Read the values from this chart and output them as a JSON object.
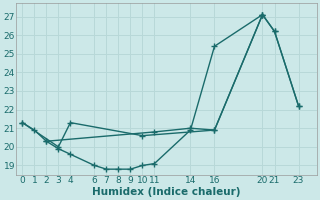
{
  "xlabel": "Humidex (Indice chaleur)",
  "bg_color": "#cce8e8",
  "line_color": "#1a6b6b",
  "line1": {
    "x": [
      0,
      1,
      2,
      3,
      4,
      6,
      7,
      8,
      9,
      10,
      11,
      14,
      16,
      20,
      21,
      23
    ],
    "y": [
      21.3,
      20.9,
      20.3,
      19.9,
      19.6,
      19.0,
      18.8,
      18.8,
      18.8,
      19.0,
      19.1,
      20.9,
      25.4,
      27.1,
      26.2,
      22.2
    ]
  },
  "line2": {
    "x": [
      0,
      3,
      4,
      10,
      16,
      20
    ],
    "y": [
      21.3,
      20.0,
      21.3,
      20.6,
      20.9,
      27.1
    ]
  },
  "line3": {
    "x": [
      2,
      11,
      14,
      16,
      20,
      21,
      23
    ],
    "y": [
      20.3,
      20.8,
      21.0,
      20.9,
      27.1,
      26.2,
      22.2
    ]
  },
  "xlim": [
    -0.5,
    24.5
  ],
  "ylim": [
    18.5,
    27.7
  ],
  "xticks": [
    0,
    1,
    2,
    3,
    4,
    6,
    7,
    8,
    9,
    10,
    11,
    14,
    16,
    20,
    21,
    23
  ],
  "yticks": [
    19,
    20,
    21,
    22,
    23,
    24,
    25,
    26,
    27
  ],
  "grid_color": "#b8d8d8",
  "marker": "+",
  "marker_size": 4,
  "linewidth": 1.0,
  "tick_fontsize": 6.5,
  "label_fontsize": 7.5
}
